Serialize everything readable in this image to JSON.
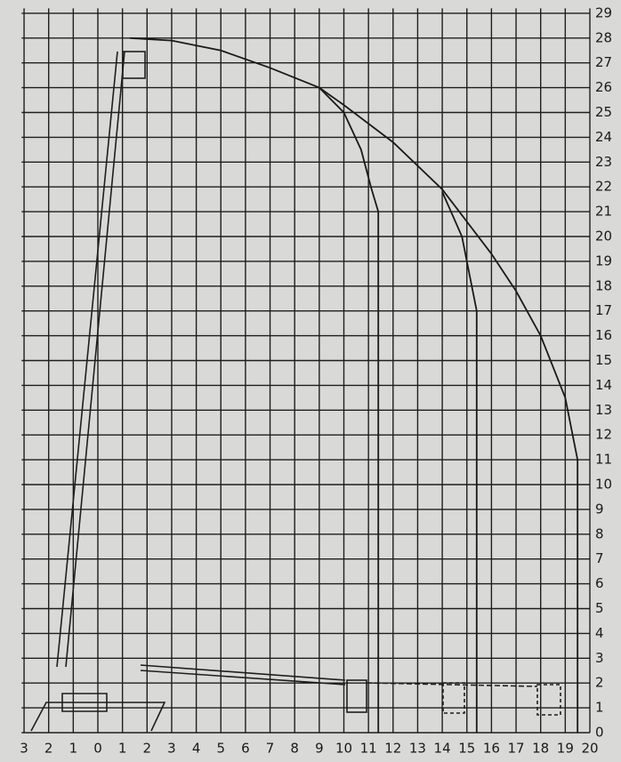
{
  "chart_data": {
    "type": "line",
    "color": "#1a1a1a",
    "grid": true,
    "xlim": [
      -3.1,
      20
    ],
    "ylim": [
      0,
      29.2
    ],
    "xticks": [
      {
        "value": -3,
        "label": "3"
      },
      {
        "value": -2,
        "label": "2"
      },
      {
        "value": -1,
        "label": "1"
      },
      0,
      1,
      2,
      3,
      4,
      5,
      6,
      7,
      8,
      9,
      10,
      11,
      12,
      13,
      14,
      15,
      16,
      17,
      18,
      19,
      20
    ],
    "yticks": [
      0,
      1,
      2,
      3,
      4,
      5,
      6,
      7,
      8,
      9,
      10,
      11,
      12,
      13,
      14,
      15,
      16,
      17,
      18,
      19,
      20,
      21,
      22,
      23,
      24,
      25,
      26,
      27,
      28,
      29
    ],
    "series": [
      {
        "x": [
          1.3,
          3,
          5,
          7,
          9,
          10,
          12,
          14,
          16,
          17,
          18,
          19,
          19.5,
          19.5
        ],
        "values": [
          28,
          27.9,
          27.5,
          26.8,
          26,
          25.3,
          23.8,
          21.9,
          19.3,
          17.8,
          16,
          13.5,
          11,
          0
        ]
      },
      {
        "x": [
          9,
          10,
          10.7,
          11.1,
          11.4,
          11.4
        ],
        "values": [
          26,
          25,
          23.5,
          22,
          21,
          0
        ]
      },
      {
        "x": [
          14,
          14.8,
          15.2,
          15.4,
          15.4
        ],
        "values": [
          21.8,
          20,
          18,
          17,
          0
        ]
      }
    ]
  }
}
